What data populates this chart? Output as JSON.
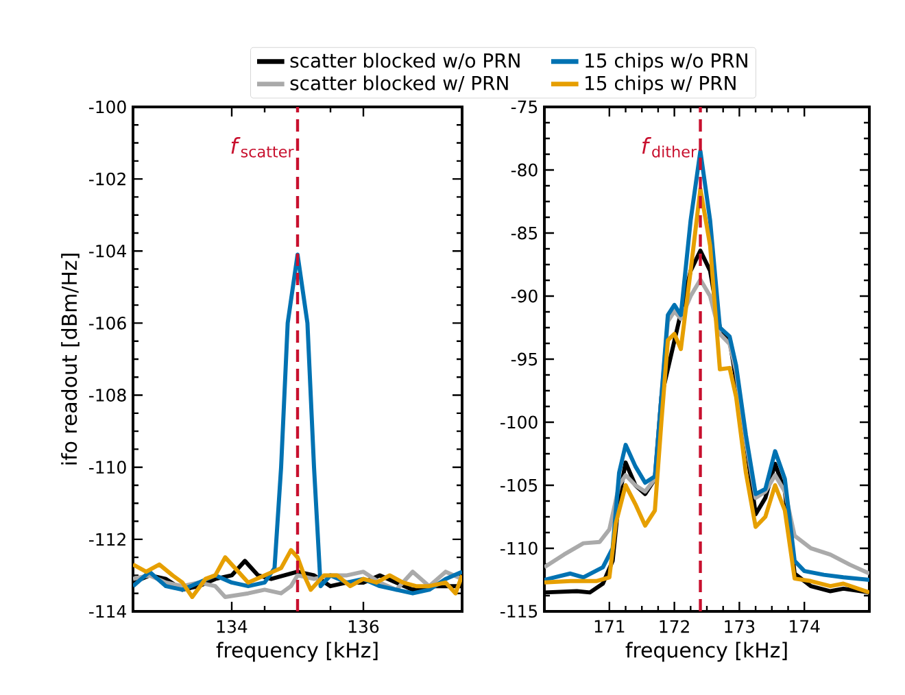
{
  "chart_data": [
    {
      "type": "line",
      "xlabel": "frequency [kHz]",
      "ylabel": "ifo readout [dBm/Hz]",
      "xlim": [
        132.5,
        137.5
      ],
      "xticks": [
        134,
        136
      ],
      "ylim": [
        -114,
        -100
      ],
      "yticks": [
        -114,
        -112,
        -110,
        -108,
        -106,
        -104,
        -102,
        -100
      ],
      "legend": "top",
      "line_style": "solid",
      "ref_lines": [
        {
          "axis": "x",
          "value": 135,
          "label": "*f*$_{scatter}$",
          "color": "#c8102e",
          "line_style": "dashed"
        }
      ],
      "series": [
        {
          "name": "scatter blocked w/o PRN",
          "color": "#000000",
          "x": [
            132.5,
            132.75,
            133.0,
            133.25,
            133.5,
            133.75,
            134.0,
            134.2,
            134.4,
            134.6,
            134.8,
            135.0,
            135.25,
            135.5,
            135.75,
            136.0,
            136.25,
            136.5,
            136.75,
            137.0,
            137.25,
            137.5
          ],
          "values": [
            -113.2,
            -113.0,
            -113.1,
            -113.4,
            -113.3,
            -113.1,
            -113.0,
            -112.6,
            -113.0,
            -113.1,
            -113.0,
            -112.9,
            -113.0,
            -113.3,
            -113.2,
            -113.2,
            -113.0,
            -113.2,
            -113.4,
            -113.3,
            -113.3,
            -113.3
          ]
        },
        {
          "name": "scatter blocked w/ PRN",
          "color": "#aaaaaa",
          "x": [
            132.5,
            132.75,
            133.0,
            133.25,
            133.5,
            133.75,
            133.9,
            134.25,
            134.5,
            134.75,
            134.9,
            135.0,
            135.25,
            135.5,
            135.75,
            136.0,
            136.25,
            136.5,
            136.75,
            137.0,
            137.25,
            137.5
          ],
          "values": [
            -113.1,
            -113.0,
            -113.2,
            -113.3,
            -113.2,
            -113.3,
            -113.6,
            -113.5,
            -113.4,
            -113.5,
            -113.3,
            -113.0,
            -113.1,
            -113.0,
            -113.0,
            -112.9,
            -113.2,
            -113.4,
            -112.9,
            -113.3,
            -112.9,
            -113.1
          ]
        },
        {
          "name": "15 chips w/o PRN",
          "color": "#0072b2",
          "x": [
            132.5,
            132.75,
            133.0,
            133.25,
            133.5,
            133.75,
            134.0,
            134.25,
            134.5,
            134.65,
            134.75,
            134.85,
            135.0,
            135.15,
            135.25,
            135.35,
            135.5,
            135.75,
            136.0,
            136.25,
            136.5,
            136.75,
            137.0,
            137.25,
            137.5
          ],
          "values": [
            -113.3,
            -112.9,
            -113.3,
            -113.4,
            -113.2,
            -113.0,
            -113.2,
            -113.3,
            -113.2,
            -112.8,
            -110,
            -106,
            -104.1,
            -106,
            -110,
            -113.3,
            -113.0,
            -113.2,
            -113.1,
            -113.3,
            -113.4,
            -113.5,
            -113.4,
            -113.1,
            -112.9
          ]
        },
        {
          "name": "15 chips w/ PRN",
          "color": "#e69f00",
          "x": [
            132.5,
            132.7,
            132.9,
            133.1,
            133.25,
            133.4,
            133.6,
            133.75,
            133.9,
            134.05,
            134.25,
            134.5,
            134.75,
            134.9,
            135.0,
            135.1,
            135.2,
            135.4,
            135.6,
            135.8,
            136.0,
            136.2,
            136.4,
            136.6,
            136.8,
            137.0,
            137.25,
            137.4,
            137.5
          ],
          "values": [
            -112.7,
            -112.9,
            -112.7,
            -113.0,
            -113.2,
            -113.6,
            -113.1,
            -113.0,
            -112.5,
            -112.8,
            -113.2,
            -113.0,
            -112.8,
            -112.3,
            -112.5,
            -113.0,
            -113.4,
            -113.0,
            -113.0,
            -113.3,
            -113.1,
            -113.2,
            -113.0,
            -113.2,
            -113.3,
            -113.3,
            -113.2,
            -113.5,
            -113.0
          ]
        }
      ]
    },
    {
      "type": "line",
      "xlabel": "frequency [kHz]",
      "xlim": [
        170,
        175
      ],
      "xticks": [
        171,
        172,
        173,
        174
      ],
      "ylim": [
        -115,
        -75
      ],
      "yticks": [
        -115,
        -110,
        -105,
        -100,
        -95,
        -90,
        -85,
        -80,
        -75
      ],
      "line_style": "solid",
      "ref_lines": [
        {
          "axis": "x",
          "value": 172.4,
          "label": "*f*$_{dither}$",
          "color": "#c8102e",
          "line_style": "dashed"
        }
      ],
      "series": [
        {
          "color": "#000000",
          "x": [
            170.0,
            170.5,
            170.7,
            170.9,
            171.05,
            171.15,
            171.25,
            171.4,
            171.55,
            171.7,
            171.8,
            171.9,
            172.0,
            172.1,
            172.25,
            172.4,
            172.55,
            172.7,
            172.85,
            172.95,
            173.1,
            173.25,
            173.4,
            173.55,
            173.7,
            173.85,
            174.1,
            174.4,
            174.6,
            175.0
          ],
          "values": [
            -113.5,
            -113.4,
            -113.5,
            -112.8,
            -111,
            -106,
            -103.2,
            -105,
            -105.7,
            -104.5,
            -98,
            null,
            null,
            null,
            -88,
            -86.4,
            -88,
            -92.5,
            -93.5,
            null,
            -101.5,
            -107.3,
            -106,
            -103.3,
            -105.5,
            -112,
            -113,
            -113.4,
            -113.2,
            -113.5
          ]
        },
        {
          "color": "#aaaaaa",
          "x": [
            170.0,
            170.3,
            170.6,
            170.85,
            171.0,
            171.15,
            171.25,
            171.4,
            171.55,
            171.7,
            171.8,
            171.9,
            172.0,
            172.1,
            172.25,
            172.4,
            172.55,
            172.7,
            172.85,
            172.95,
            173.1,
            173.25,
            173.4,
            173.55,
            173.7,
            173.85,
            174.1,
            174.4,
            174.7,
            175.0
          ],
          "values": [
            -111.5,
            -110.5,
            -109.6,
            -109.5,
            -108.5,
            -105,
            -104.2,
            -105,
            -105.5,
            -104.5,
            -98,
            -92,
            -91.2,
            -91.8,
            -90,
            -88.7,
            -90,
            -93,
            -93.8,
            -96,
            -101.5,
            -106,
            -105.5,
            -104.2,
            -105.5,
            -109,
            -110,
            -110.5,
            -111.3,
            -112
          ]
        },
        {
          "color": "#0072b2",
          "x": [
            170.0,
            170.4,
            170.6,
            170.9,
            171.05,
            171.15,
            171.25,
            171.4,
            171.55,
            171.7,
            171.8,
            171.9,
            172.0,
            172.1,
            172.25,
            172.4,
            172.55,
            172.7,
            172.85,
            172.95,
            173.1,
            173.25,
            173.4,
            173.55,
            173.7,
            173.85,
            174.0,
            174.3,
            174.6,
            175.0
          ],
          "values": [
            -112.5,
            -112.0,
            -112.3,
            -111.5,
            -110,
            -104,
            -101.8,
            -103.5,
            -104.8,
            -104.3,
            -98,
            -91.5,
            -90.7,
            -91.5,
            -84,
            -78.5,
            -84,
            -92.5,
            -93.2,
            -95.5,
            -101,
            -105.7,
            -105.3,
            -102.3,
            -104.5,
            -111,
            -111.8,
            -112.1,
            -112.3,
            -112.5
          ]
        },
        {
          "color": "#e69f00",
          "x": [
            170.0,
            170.4,
            170.8,
            171.0,
            171.1,
            171.25,
            171.4,
            171.55,
            171.7,
            171.8,
            171.9,
            172.0,
            172.1,
            172.25,
            172.4,
            172.55,
            172.7,
            172.85,
            172.95,
            173.1,
            173.25,
            173.4,
            173.55,
            173.7,
            173.85,
            174.1,
            174.4,
            174.6,
            175.0
          ],
          "values": [
            -112.7,
            -112.6,
            -112.6,
            -112.3,
            -108,
            -105,
            -106.5,
            -108.2,
            -107,
            -100,
            -93.5,
            -93,
            -94.2,
            -88,
            -81.5,
            -86,
            -95.8,
            -95.7,
            -98,
            -104,
            -108.3,
            -107.5,
            -105,
            -107,
            -112.4,
            -112.6,
            -113.0,
            -112.8,
            -113.5
          ]
        }
      ]
    }
  ]
}
